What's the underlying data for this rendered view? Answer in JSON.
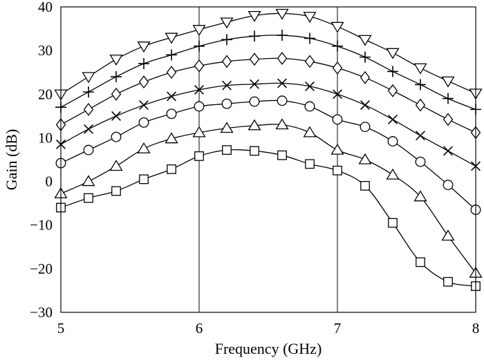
{
  "chart_data": {
    "type": "line",
    "title": "",
    "xlabel": "Frequency (GHz)",
    "ylabel": "Gain (dB)",
    "xlim": [
      5,
      8
    ],
    "ylim": [
      -30,
      40
    ],
    "x_ticks": [
      5,
      6,
      7,
      8
    ],
    "y_ticks": [
      -30,
      -20,
      -10,
      0,
      10,
      20,
      30,
      40
    ],
    "y_tick_labels": [
      "−30",
      "−20",
      "−10",
      "0",
      "10",
      "20",
      "30",
      "40"
    ],
    "grid": "vertical",
    "series": [
      {
        "marker": "triangle-down",
        "x": [
          5.0,
          5.2,
          5.4,
          5.6,
          5.8,
          6.0,
          6.2,
          6.4,
          6.6,
          6.8,
          7.0,
          7.2,
          7.4,
          7.6,
          7.8,
          8.0
        ],
        "y": [
          20.0,
          24.0,
          28.0,
          31.0,
          33.0,
          34.8,
          36.5,
          38.0,
          38.5,
          37.8,
          35.5,
          32.5,
          29.5,
          26.0,
          23.0,
          20.2
        ]
      },
      {
        "marker": "plus",
        "x": [
          5.0,
          5.2,
          5.4,
          5.6,
          5.8,
          6.0,
          6.2,
          6.4,
          6.6,
          6.8,
          7.0,
          7.2,
          7.4,
          7.6,
          7.8,
          8.0
        ],
        "y": [
          17.0,
          20.5,
          24.0,
          27.0,
          29.0,
          31.0,
          32.5,
          33.3,
          33.5,
          32.8,
          31.0,
          28.5,
          25.2,
          22.2,
          19.0,
          16.5
        ]
      },
      {
        "marker": "diamond",
        "x": [
          5.0,
          5.2,
          5.4,
          5.6,
          5.8,
          6.0,
          6.2,
          6.4,
          6.6,
          6.8,
          7.0,
          7.2,
          7.4,
          7.6,
          7.8,
          8.0
        ],
        "y": [
          13.0,
          16.5,
          20.0,
          22.8,
          25.0,
          26.5,
          27.5,
          28.0,
          28.2,
          27.5,
          26.0,
          23.8,
          20.8,
          17.5,
          14.2,
          11.2
        ]
      },
      {
        "marker": "x",
        "x": [
          5.0,
          5.2,
          5.4,
          5.6,
          5.8,
          6.0,
          6.2,
          6.4,
          6.6,
          6.8,
          7.0,
          7.2,
          7.4,
          7.6,
          7.8,
          8.0
        ],
        "y": [
          8.5,
          12.0,
          15.0,
          17.5,
          19.5,
          21.0,
          22.0,
          22.3,
          22.5,
          21.8,
          20.0,
          17.5,
          14.2,
          10.5,
          7.0,
          3.5
        ]
      },
      {
        "marker": "circle",
        "x": [
          5.0,
          5.2,
          5.4,
          5.6,
          5.8,
          6.0,
          6.2,
          6.4,
          6.6,
          6.8,
          7.0,
          7.2,
          7.4,
          7.6,
          7.8,
          8.0
        ],
        "y": [
          4.2,
          7.2,
          10.2,
          13.5,
          15.5,
          17.2,
          17.8,
          18.3,
          18.5,
          17.2,
          14.2,
          12.5,
          9.2,
          4.5,
          -0.8,
          -6.5
        ]
      },
      {
        "marker": "triangle-up",
        "x": [
          5.0,
          5.2,
          5.4,
          5.6,
          5.8,
          6.0,
          6.2,
          6.4,
          6.6,
          6.8,
          7.0,
          7.2,
          7.4,
          7.6,
          7.8,
          8.0
        ],
        "y": [
          -2.8,
          0.0,
          3.5,
          7.5,
          9.8,
          11.2,
          12.2,
          12.8,
          13.0,
          11.2,
          7.2,
          5.0,
          1.5,
          -3.5,
          -12.5,
          -21.0
        ]
      },
      {
        "marker": "square",
        "x": [
          5.0,
          5.2,
          5.4,
          5.6,
          5.8,
          6.0,
          6.2,
          6.4,
          6.6,
          6.8,
          7.0,
          7.2,
          7.4,
          7.6,
          7.8,
          8.0
        ],
        "y": [
          -6.0,
          -3.8,
          -2.2,
          0.5,
          2.8,
          5.8,
          7.2,
          7.0,
          6.0,
          4.0,
          2.5,
          -1.0,
          -9.5,
          -18.5,
          -23.0,
          -24.0
        ]
      }
    ]
  }
}
